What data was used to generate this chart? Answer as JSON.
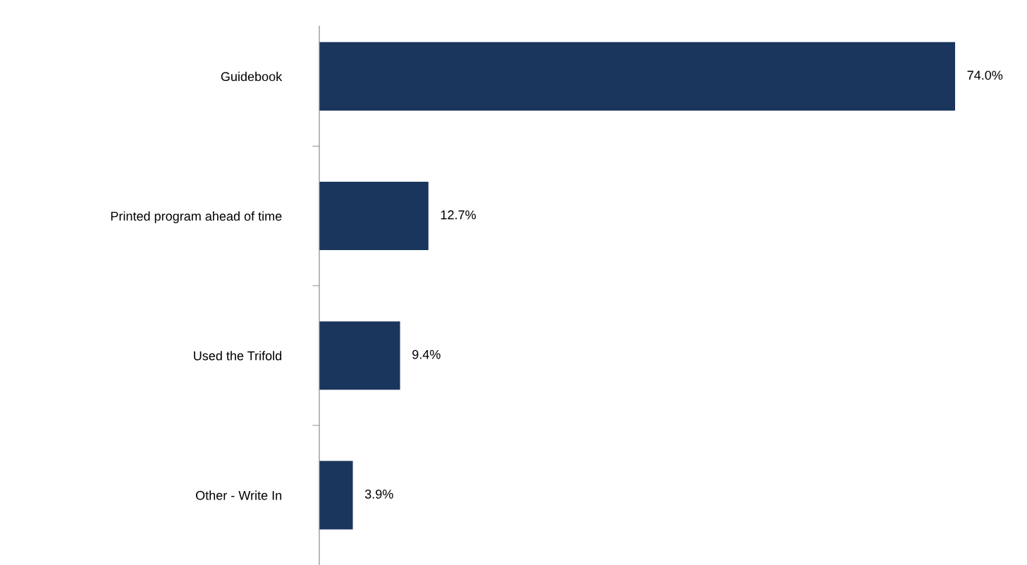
{
  "chart_data": {
    "type": "bar",
    "orientation": "horizontal",
    "categories": [
      "Guidebook",
      "Printed program ahead of time",
      "Used the Trifold",
      "Other - Write In"
    ],
    "values": [
      74.0,
      12.7,
      9.4,
      3.9
    ],
    "value_labels": [
      "74.0%",
      "12.7%",
      "9.4%",
      "3.9%"
    ],
    "color": "#1b365d",
    "grid": false,
    "legend": false
  }
}
